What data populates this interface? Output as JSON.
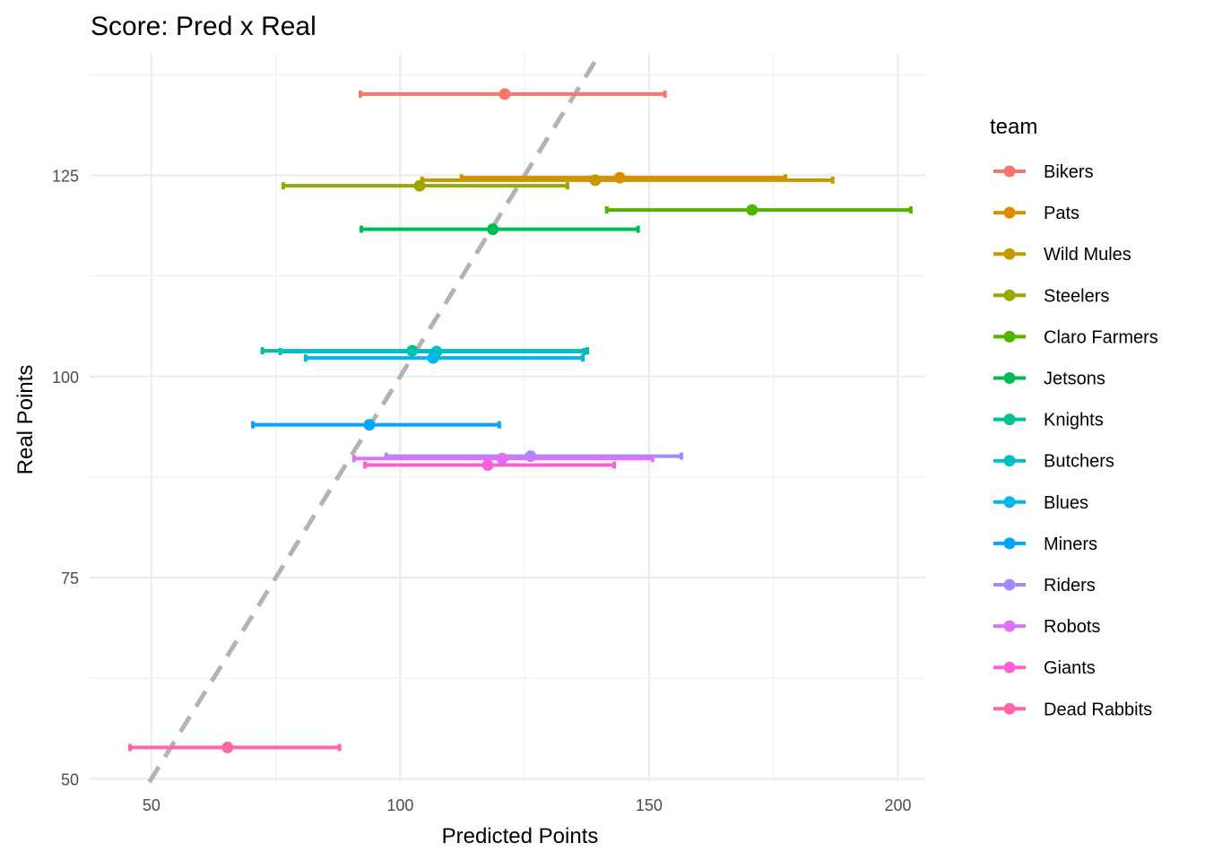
{
  "chart_data": {
    "type": "scatter",
    "title": "Score: Pred x Real",
    "xlabel": "Predicted Points",
    "ylabel": "Real Points",
    "xlim": [
      37.6,
      205.5
    ],
    "ylim": [
      49.6,
      140.1
    ],
    "x_ticks": [
      50,
      100,
      150,
      200
    ],
    "y_ticks": [
      50,
      75,
      100,
      125
    ],
    "grid": true,
    "reference_line": {
      "type": "y = x",
      "style": "dashed",
      "color": "#b3b3b3"
    },
    "legend": {
      "title": "team",
      "placement": "right"
    },
    "series": [
      {
        "name": "Bikers",
        "color": "#F8766D",
        "x": 121.0,
        "y": 135.1,
        "xmin": 92.0,
        "xmax": 153.2
      },
      {
        "name": "Pats",
        "color": "#E38900",
        "x": 144.1,
        "y": 124.7,
        "xmin": 112.3,
        "xmax": 177.4
      },
      {
        "name": "Wild Mules",
        "color": "#C49A00",
        "x": 139.2,
        "y": 124.4,
        "xmin": 104.4,
        "xmax": 186.9
      },
      {
        "name": "Steelers",
        "color": "#99A800",
        "x": 103.9,
        "y": 123.7,
        "xmin": 76.5,
        "xmax": 133.6
      },
      {
        "name": "Claro Farmers",
        "color": "#53B400",
        "x": 170.7,
        "y": 120.7,
        "xmin": 141.5,
        "xmax": 202.6
      },
      {
        "name": "Jetsons",
        "color": "#00BC56",
        "x": 118.6,
        "y": 118.3,
        "xmin": 92.2,
        "xmax": 147.8
      },
      {
        "name": "Knights",
        "color": "#00C094",
        "x": 102.4,
        "y": 103.2,
        "xmin": 72.3,
        "xmax": 137.6
      },
      {
        "name": "Butchers",
        "color": "#00BFC4",
        "x": 107.3,
        "y": 103.1,
        "xmin": 75.9,
        "xmax": 137.0
      },
      {
        "name": "Blues",
        "color": "#00B6EB",
        "x": 106.6,
        "y": 102.3,
        "xmin": 81.0,
        "xmax": 136.7
      },
      {
        "name": "Miners",
        "color": "#06A4FF",
        "x": 93.8,
        "y": 94.0,
        "xmin": 70.4,
        "xmax": 119.9
      },
      {
        "name": "Riders",
        "color": "#A58AFF",
        "x": 126.2,
        "y": 90.1,
        "xmin": 97.2,
        "xmax": 156.5
      },
      {
        "name": "Robots",
        "color": "#DF70F8",
        "x": 120.5,
        "y": 89.8,
        "xmin": 90.7,
        "xmax": 150.7
      },
      {
        "name": "Giants",
        "color": "#FB61D7",
        "x": 117.6,
        "y": 89.0,
        "xmin": 92.9,
        "xmax": 143.0
      },
      {
        "name": "Dead Rabbits",
        "color": "#FF66A8",
        "x": 65.3,
        "y": 53.9,
        "xmin": 45.7,
        "xmax": 87.8
      }
    ]
  }
}
